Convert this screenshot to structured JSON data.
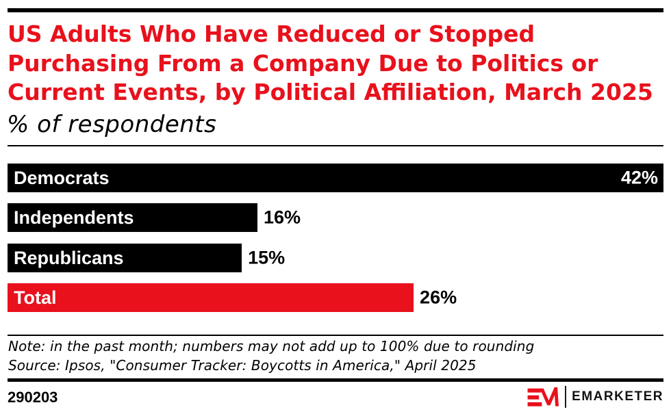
{
  "colors": {
    "accent_red": "#e8111c",
    "bar_black": "#000000",
    "text_black": "#000000",
    "background": "#ffffff"
  },
  "header": {
    "title": "US Adults Who Have Reduced or Stopped Purchasing From a Company Due to Politics or Current Events, by Political Affiliation, March 2025",
    "title_lines": [
      "US Adults Who Have Reduced or Stopped",
      "Purchasing From a Company Due to Politics or",
      "Current Events, by Political Affiliation, March 2025"
    ],
    "subtitle": "% of respondents"
  },
  "chart_data": {
    "type": "bar",
    "orientation": "horizontal",
    "title": "US Adults Who Have Reduced or Stopped Purchasing From a Company Due to Politics or Current Events, by Political Affiliation, March 2025",
    "subtitle": "% of respondents",
    "unit": "%",
    "categories": [
      "Democrats",
      "Independents",
      "Republicans",
      "Total"
    ],
    "values": [
      42,
      16,
      15,
      26
    ],
    "value_labels": [
      "42%",
      "16%",
      "15%",
      "26%"
    ],
    "bar_colors": [
      "#000000",
      "#000000",
      "#000000",
      "#e8111c"
    ],
    "xlim": [
      0,
      42
    ],
    "grid": false,
    "legend": false
  },
  "notes": {
    "note": "Note: in the past month; numbers may not add up to 100% due to rounding",
    "source": "Source: Ipsos, \"Consumer Tracker: Boycotts in America,\" April 2025"
  },
  "footer": {
    "chart_id": "290203",
    "brand": "EMARKETER"
  }
}
